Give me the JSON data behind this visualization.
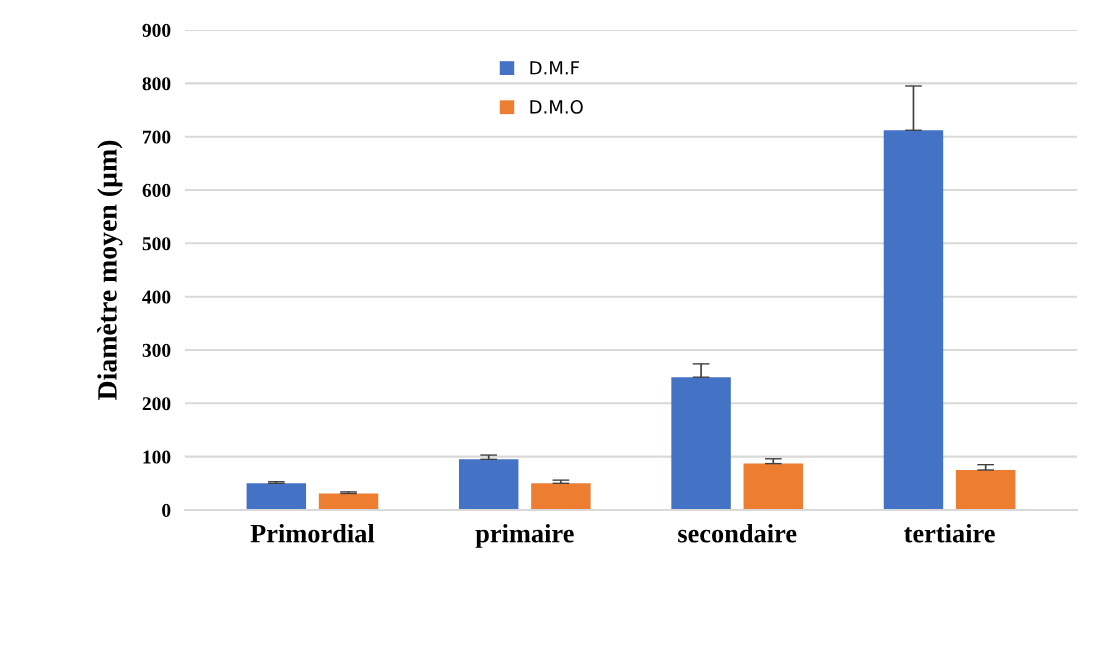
{
  "chart_data": {
    "type": "bar",
    "ylabel": "Diamètre moyen (µm)",
    "categories": [
      "Primordial",
      "primaire",
      "secondaire",
      "tertiaire"
    ],
    "series": [
      {
        "name": "D.M.F",
        "color": "#4472c4",
        "values": [
          50,
          95,
          249,
          712
        ],
        "errors": [
          3,
          8,
          25,
          83
        ]
      },
      {
        "name": "D.M.O",
        "color": "#ed7d31",
        "values": [
          31,
          50,
          87,
          75
        ],
        "errors": [
          3,
          6,
          9,
          10
        ]
      }
    ],
    "ylim": [
      0,
      900
    ],
    "yticks": [
      0,
      100,
      200,
      300,
      400,
      500,
      600,
      700,
      800,
      900
    ],
    "grid": "y",
    "legend": "top"
  }
}
